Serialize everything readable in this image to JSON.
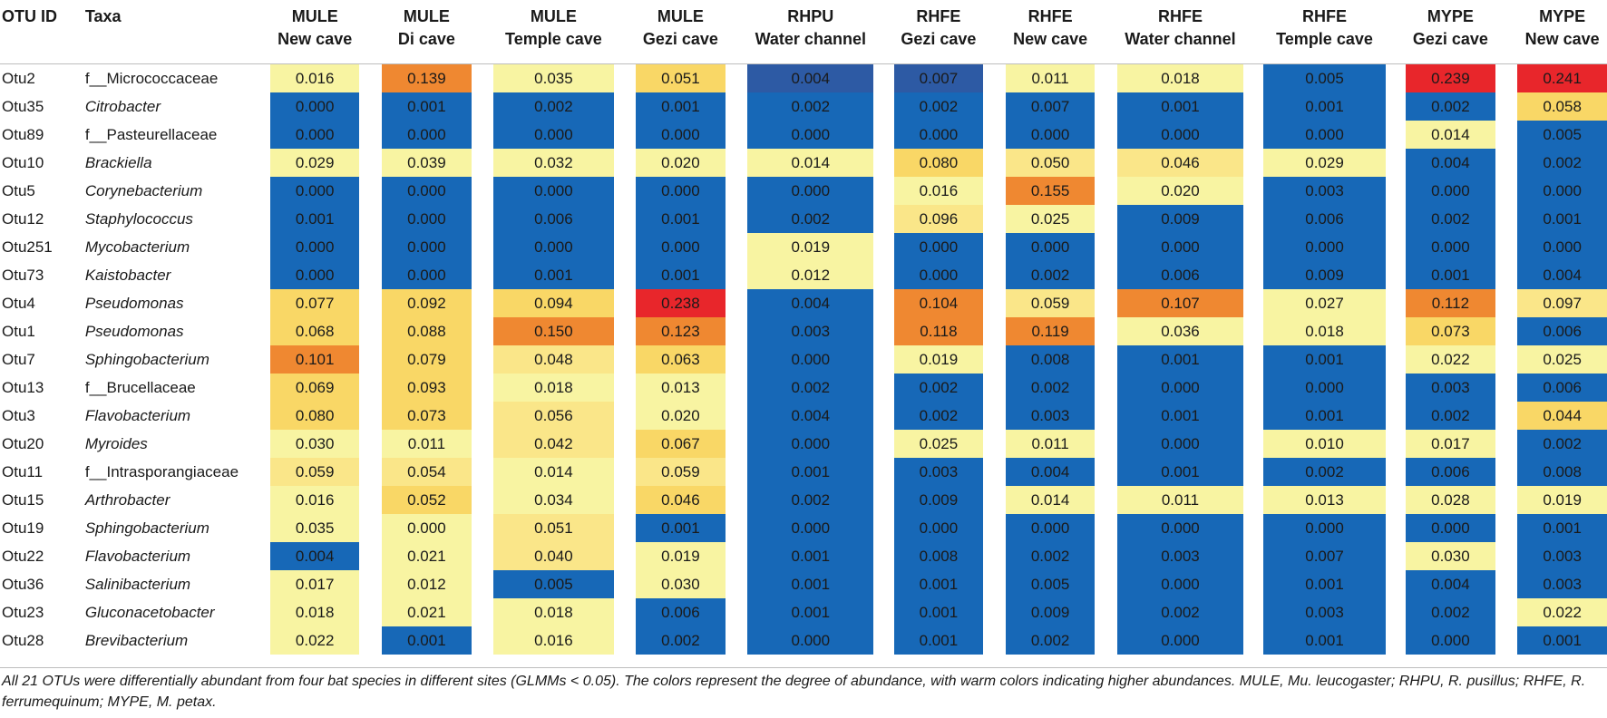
{
  "header": {
    "otu_id": "OTU ID",
    "taxa": "Taxa",
    "columns": [
      {
        "species": "MULE",
        "site": "New cave"
      },
      {
        "species": "MULE",
        "site": "Di cave"
      },
      {
        "species": "MULE",
        "site": "Temple cave"
      },
      {
        "species": "MULE",
        "site": "Gezi cave"
      },
      {
        "species": "RHPU",
        "site": "Water channel"
      },
      {
        "species": "RHFE",
        "site": "Gezi cave"
      },
      {
        "species": "RHFE",
        "site": "New cave"
      },
      {
        "species": "RHFE",
        "site": "Water channel"
      },
      {
        "species": "RHFE",
        "site": "Temple cave"
      },
      {
        "species": "MYPE",
        "site": "Gezi cave"
      },
      {
        "species": "MYPE",
        "site": "New cave"
      }
    ]
  },
  "colors": {
    "very_low": "#1768b7",
    "low_dark": "#2d5aa4",
    "pale": "#f8f4a2",
    "light_yellow": "#fae689",
    "yellow": "#f9d766",
    "orange": "#ef8831",
    "red": "#e8262b"
  },
  "rows": [
    {
      "id": "Otu2",
      "taxa": "f__Micrococcaceae",
      "italic": false,
      "values": [
        "0.016",
        "0.139",
        "0.035",
        "0.051",
        "0.004",
        "0.007",
        "0.011",
        "0.018",
        "0.005",
        "0.239",
        "0.241"
      ],
      "colors": [
        "pale",
        "orange",
        "pale",
        "yellow",
        "low_dark",
        "low_dark",
        "pale",
        "pale",
        "very_low",
        "red",
        "red"
      ]
    },
    {
      "id": "Otu35",
      "taxa": "Citrobacter",
      "italic": true,
      "values": [
        "0.000",
        "0.001",
        "0.002",
        "0.001",
        "0.002",
        "0.002",
        "0.007",
        "0.001",
        "0.001",
        "0.002",
        "0.058"
      ],
      "colors": [
        "very_low",
        "very_low",
        "very_low",
        "very_low",
        "very_low",
        "very_low",
        "very_low",
        "very_low",
        "very_low",
        "very_low",
        "yellow"
      ]
    },
    {
      "id": "Otu89",
      "taxa": "f__Pasteurellaceae",
      "italic": false,
      "values": [
        "0.000",
        "0.000",
        "0.000",
        "0.000",
        "0.000",
        "0.000",
        "0.000",
        "0.000",
        "0.000",
        "0.014",
        "0.005"
      ],
      "colors": [
        "very_low",
        "very_low",
        "very_low",
        "very_low",
        "very_low",
        "very_low",
        "very_low",
        "very_low",
        "very_low",
        "pale",
        "very_low"
      ]
    },
    {
      "id": "Otu10",
      "taxa": "Brackiella",
      "italic": true,
      "values": [
        "0.029",
        "0.039",
        "0.032",
        "0.020",
        "0.014",
        "0.080",
        "0.050",
        "0.046",
        "0.029",
        "0.004",
        "0.002"
      ],
      "colors": [
        "pale",
        "pale",
        "pale",
        "pale",
        "pale",
        "yellow",
        "light_yellow",
        "light_yellow",
        "pale",
        "very_low",
        "very_low"
      ]
    },
    {
      "id": "Otu5",
      "taxa": "Corynebacterium",
      "italic": true,
      "values": [
        "0.000",
        "0.000",
        "0.000",
        "0.000",
        "0.000",
        "0.016",
        "0.155",
        "0.020",
        "0.003",
        "0.000",
        "0.000"
      ],
      "colors": [
        "very_low",
        "very_low",
        "very_low",
        "very_low",
        "very_low",
        "pale",
        "orange",
        "pale",
        "very_low",
        "very_low",
        "very_low"
      ]
    },
    {
      "id": "Otu12",
      "taxa": "Staphylococcus",
      "italic": true,
      "values": [
        "0.001",
        "0.000",
        "0.006",
        "0.001",
        "0.002",
        "0.096",
        "0.025",
        "0.009",
        "0.006",
        "0.002",
        "0.001"
      ],
      "colors": [
        "very_low",
        "very_low",
        "very_low",
        "very_low",
        "very_low",
        "light_yellow",
        "pale",
        "very_low",
        "very_low",
        "very_low",
        "very_low"
      ]
    },
    {
      "id": "Otu251",
      "taxa": "Mycobacterium",
      "italic": true,
      "values": [
        "0.000",
        "0.000",
        "0.000",
        "0.000",
        "0.019",
        "0.000",
        "0.000",
        "0.000",
        "0.000",
        "0.000",
        "0.000"
      ],
      "colors": [
        "very_low",
        "very_low",
        "very_low",
        "very_low",
        "pale",
        "very_low",
        "very_low",
        "very_low",
        "very_low",
        "very_low",
        "very_low"
      ]
    },
    {
      "id": "Otu73",
      "taxa": "Kaistobacter",
      "italic": true,
      "values": [
        "0.000",
        "0.000",
        "0.001",
        "0.001",
        "0.012",
        "0.000",
        "0.002",
        "0.006",
        "0.009",
        "0.001",
        "0.004"
      ],
      "colors": [
        "very_low",
        "very_low",
        "very_low",
        "very_low",
        "pale",
        "very_low",
        "very_low",
        "very_low",
        "very_low",
        "very_low",
        "very_low"
      ]
    },
    {
      "id": "Otu4",
      "taxa": "Pseudomonas",
      "italic": true,
      "values": [
        "0.077",
        "0.092",
        "0.094",
        "0.238",
        "0.004",
        "0.104",
        "0.059",
        "0.107",
        "0.027",
        "0.112",
        "0.097"
      ],
      "colors": [
        "yellow",
        "yellow",
        "yellow",
        "red",
        "very_low",
        "orange",
        "light_yellow",
        "orange",
        "pale",
        "orange",
        "light_yellow"
      ]
    },
    {
      "id": "Otu1",
      "taxa": "Pseudomonas",
      "italic": true,
      "values": [
        "0.068",
        "0.088",
        "0.150",
        "0.123",
        "0.003",
        "0.118",
        "0.119",
        "0.036",
        "0.018",
        "0.073",
        "0.006"
      ],
      "colors": [
        "yellow",
        "yellow",
        "orange",
        "orange",
        "very_low",
        "orange",
        "orange",
        "pale",
        "pale",
        "yellow",
        "very_low"
      ]
    },
    {
      "id": "Otu7",
      "taxa": "Sphingobacterium",
      "italic": true,
      "values": [
        "0.101",
        "0.079",
        "0.048",
        "0.063",
        "0.000",
        "0.019",
        "0.008",
        "0.001",
        "0.001",
        "0.022",
        "0.025"
      ],
      "colors": [
        "orange",
        "yellow",
        "light_yellow",
        "yellow",
        "very_low",
        "pale",
        "very_low",
        "very_low",
        "very_low",
        "pale",
        "pale"
      ]
    },
    {
      "id": "Otu13",
      "taxa": "f__Brucellaceae",
      "italic": false,
      "values": [
        "0.069",
        "0.093",
        "0.018",
        "0.013",
        "0.002",
        "0.002",
        "0.002",
        "0.000",
        "0.000",
        "0.003",
        "0.006"
      ],
      "colors": [
        "yellow",
        "yellow",
        "pale",
        "pale",
        "very_low",
        "very_low",
        "very_low",
        "very_low",
        "very_low",
        "very_low",
        "very_low"
      ]
    },
    {
      "id": "Otu3",
      "taxa": "Flavobacterium",
      "italic": true,
      "values": [
        "0.080",
        "0.073",
        "0.056",
        "0.020",
        "0.004",
        "0.002",
        "0.003",
        "0.001",
        "0.001",
        "0.002",
        "0.044"
      ],
      "colors": [
        "yellow",
        "yellow",
        "light_yellow",
        "pale",
        "very_low",
        "very_low",
        "very_low",
        "very_low",
        "very_low",
        "very_low",
        "yellow"
      ]
    },
    {
      "id": "Otu20",
      "taxa": "Myroides",
      "italic": true,
      "values": [
        "0.030",
        "0.011",
        "0.042",
        "0.067",
        "0.000",
        "0.025",
        "0.011",
        "0.000",
        "0.010",
        "0.017",
        "0.002"
      ],
      "colors": [
        "pale",
        "pale",
        "light_yellow",
        "yellow",
        "very_low",
        "pale",
        "pale",
        "very_low",
        "pale",
        "pale",
        "very_low"
      ]
    },
    {
      "id": "Otu11",
      "taxa": "f__Intrasporangiaceae",
      "italic": false,
      "values": [
        "0.059",
        "0.054",
        "0.014",
        "0.059",
        "0.001",
        "0.003",
        "0.004",
        "0.001",
        "0.002",
        "0.006",
        "0.008"
      ],
      "colors": [
        "light_yellow",
        "light_yellow",
        "pale",
        "light_yellow",
        "very_low",
        "very_low",
        "very_low",
        "very_low",
        "very_low",
        "very_low",
        "very_low"
      ]
    },
    {
      "id": "Otu15",
      "taxa": "Arthrobacter",
      "italic": true,
      "values": [
        "0.016",
        "0.052",
        "0.034",
        "0.046",
        "0.002",
        "0.009",
        "0.014",
        "0.011",
        "0.013",
        "0.028",
        "0.019"
      ],
      "colors": [
        "pale",
        "yellow",
        "pale",
        "yellow",
        "very_low",
        "very_low",
        "pale",
        "pale",
        "pale",
        "pale",
        "pale"
      ]
    },
    {
      "id": "Otu19",
      "taxa": "Sphingobacterium",
      "italic": true,
      "values": [
        "0.035",
        "0.000",
        "0.051",
        "0.001",
        "0.000",
        "0.000",
        "0.000",
        "0.000",
        "0.000",
        "0.000",
        "0.001"
      ],
      "colors": [
        "pale",
        "pale",
        "light_yellow",
        "very_low",
        "very_low",
        "very_low",
        "very_low",
        "very_low",
        "very_low",
        "very_low",
        "very_low"
      ]
    },
    {
      "id": "Otu22",
      "taxa": "Flavobacterium",
      "italic": true,
      "values": [
        "0.004",
        "0.021",
        "0.040",
        "0.019",
        "0.001",
        "0.008",
        "0.002",
        "0.003",
        "0.007",
        "0.030",
        "0.003"
      ],
      "colors": [
        "very_low",
        "pale",
        "light_yellow",
        "pale",
        "very_low",
        "very_low",
        "very_low",
        "very_low",
        "very_low",
        "pale",
        "very_low"
      ]
    },
    {
      "id": "Otu36",
      "taxa": "Salinibacterium",
      "italic": true,
      "values": [
        "0.017",
        "0.012",
        "0.005",
        "0.030",
        "0.001",
        "0.001",
        "0.005",
        "0.000",
        "0.001",
        "0.004",
        "0.003"
      ],
      "colors": [
        "pale",
        "pale",
        "very_low",
        "pale",
        "very_low",
        "very_low",
        "very_low",
        "very_low",
        "very_low",
        "very_low",
        "very_low"
      ]
    },
    {
      "id": "Otu23",
      "taxa": "Gluconacetobacter",
      "italic": true,
      "values": [
        "0.018",
        "0.021",
        "0.018",
        "0.006",
        "0.001",
        "0.001",
        "0.009",
        "0.002",
        "0.003",
        "0.002",
        "0.022"
      ],
      "colors": [
        "pale",
        "pale",
        "pale",
        "very_low",
        "very_low",
        "very_low",
        "very_low",
        "very_low",
        "very_low",
        "very_low",
        "pale"
      ]
    },
    {
      "id": "Otu28",
      "taxa": "Brevibacterium",
      "italic": true,
      "values": [
        "0.022",
        "0.001",
        "0.016",
        "0.002",
        "0.000",
        "0.001",
        "0.002",
        "0.000",
        "0.001",
        "0.000",
        "0.001"
      ],
      "colors": [
        "pale",
        "very_low",
        "pale",
        "very_low",
        "very_low",
        "very_low",
        "very_low",
        "very_low",
        "very_low",
        "very_low",
        "very_low"
      ]
    }
  ],
  "caption": "All 21 OTUs were differentially abundant from four bat species in different sites (GLMMs < 0.05). The colors represent the degree of abundance, with warm colors indicating higher abundances. MULE, Mu. leucogaster; RHPU, R. pusillus; RHFE, R. ferrumequinum; MYPE, M. petax."
}
